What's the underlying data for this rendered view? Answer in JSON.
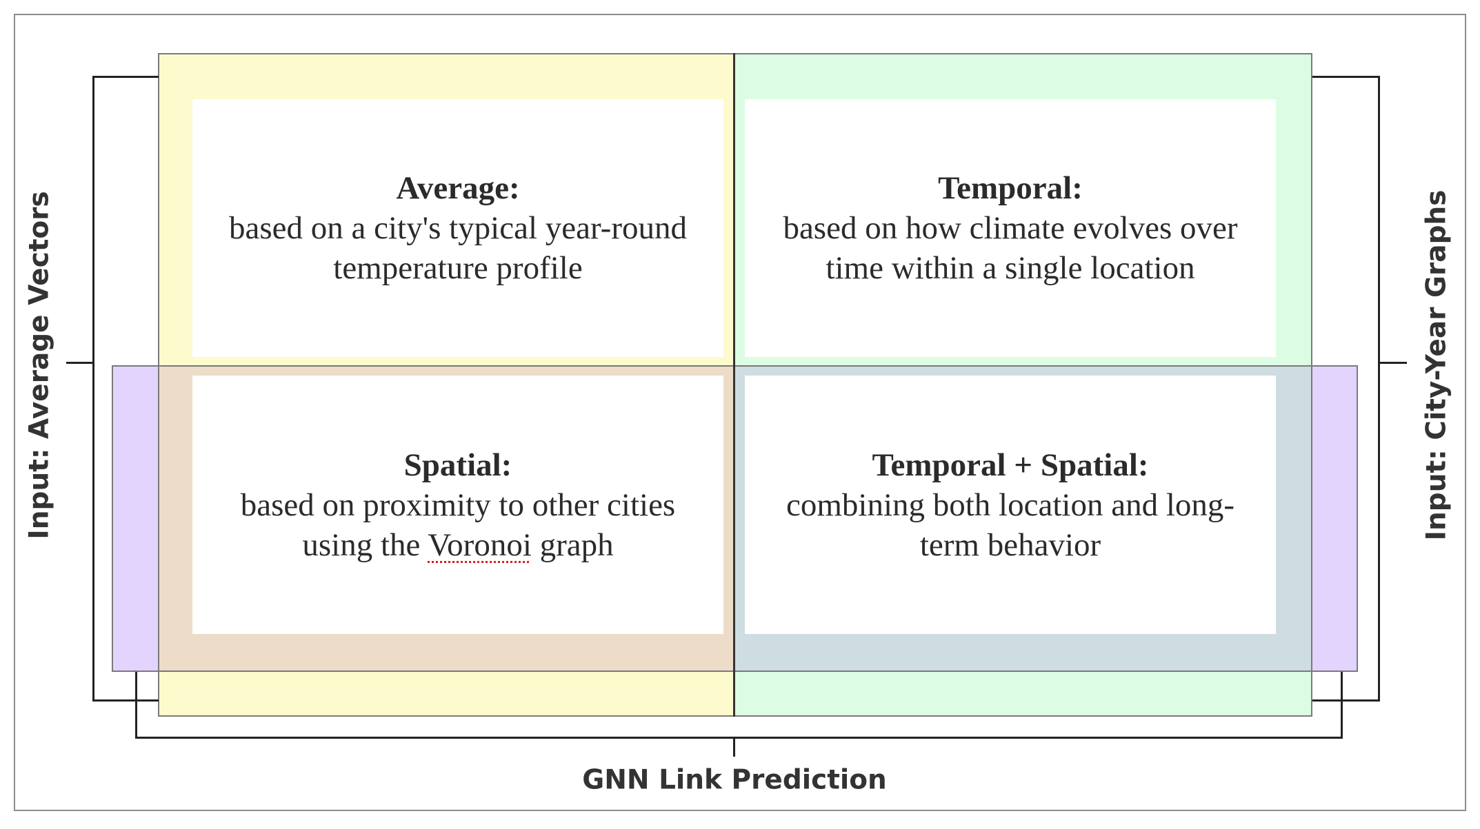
{
  "quadrants": {
    "average": {
      "title": "Average:",
      "line1": "based on a city's typical year-round",
      "line2": "temperature profile",
      "color": "#fdfbcd"
    },
    "temporal": {
      "title": "Temporal:",
      "line1": "based on how climate evolves over",
      "line2": "time within a single location",
      "color": "#dcfde3"
    },
    "spatial": {
      "title": "Spatial:",
      "line1": "based on proximity to other cities",
      "line2_pre": "using the ",
      "line2_word": "Voronoi",
      "line2_post": " graph",
      "color": "#ecdcc8"
    },
    "temporal_spatial": {
      "title": "Temporal + Spatial:",
      "line1": "combining both location and long-",
      "line2": "term behavior",
      "color": "#cddde1"
    }
  },
  "labels": {
    "left": "Input: Average Vectors",
    "right": "Input: City-Year Graphs",
    "bottom": "GNN Link Prediction"
  },
  "colors": {
    "yellow": "#fdfbcd",
    "green": "#dcfde3",
    "purple": "#e2d4fc",
    "tan": "#ecdcc8",
    "blue": "#cddde1"
  }
}
